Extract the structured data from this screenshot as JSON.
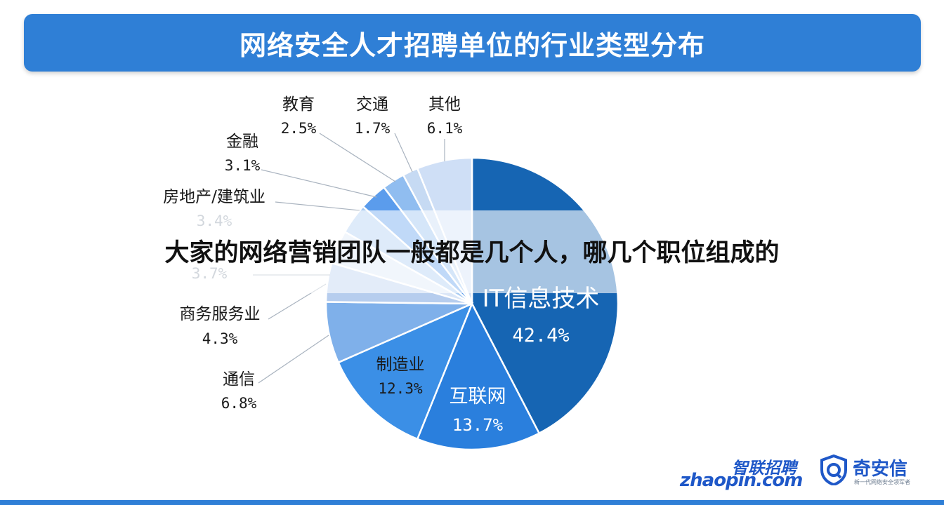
{
  "chart_data": {
    "type": "pie",
    "title": "网络安全人才招聘单位的行业类型分布",
    "slices": [
      {
        "label": "IT信息技术",
        "pct_label": "42.4%",
        "value": 42.4,
        "color": "#1665b3"
      },
      {
        "label": "互联网",
        "pct_label": "13.7%",
        "value": 13.7,
        "color": "#2a7fdd"
      },
      {
        "label": "制造业",
        "pct_label": "12.3%",
        "value": 12.3,
        "color": "#3b8fe6"
      },
      {
        "label": "通信",
        "pct_label": "6.8%",
        "value": 6.8,
        "color": "#7fb0ea"
      },
      {
        "label": "商务服务业",
        "pct_label": "4.3%",
        "value": 4.3,
        "color": "#b6cdee"
      },
      {
        "label": "",
        "pct_label": "3.7%",
        "value": 3.7,
        "color": "#dae6f7"
      },
      {
        "label": "房地产/建筑业",
        "pct_label": "3.4%",
        "value": 3.4,
        "color": "#a9cbf2"
      },
      {
        "label": "金融",
        "pct_label": "3.1%",
        "value": 3.1,
        "color": "#5b9cec"
      },
      {
        "label": "教育",
        "pct_label": "2.5%",
        "value": 2.5,
        "color": "#90bdf0"
      },
      {
        "label": "交通",
        "pct_label": "1.7%",
        "value": 1.7,
        "color": "#c6daf3"
      },
      {
        "label": "其他",
        "pct_label": "6.1%",
        "value": 6.1,
        "color": "#cfdff6"
      }
    ]
  },
  "overlay_caption": "大家的网络营销团队一般都是几个人，哪几个职位组成的",
  "logos": {
    "zhaopin_cn": "智联招聘",
    "zhaopin_en": "zhaopin.com",
    "qax_name": "奇安信",
    "qax_slogan": "新一代网络安全领军者"
  }
}
